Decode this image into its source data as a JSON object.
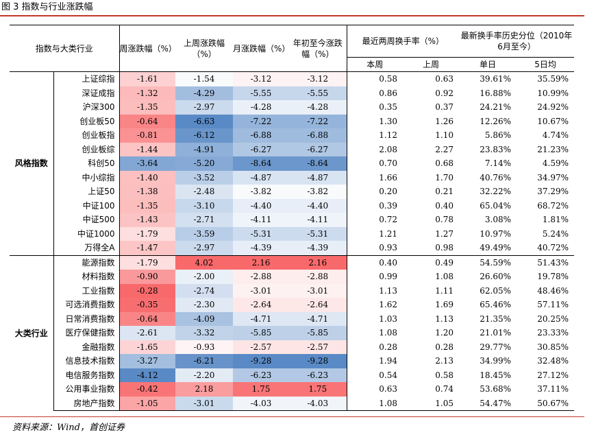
{
  "title": "图 3 指数与行业涨跌幅",
  "source": "资料来源：Wind，首创证券",
  "headers": {
    "category": "指数与大类行业",
    "week": "周涨跌幅（%）",
    "last_week": "上周涨跌幅（%）",
    "month": "月涨跌幅（%）",
    "ytd": "年初至今涨跌幅（%）",
    "turnover": "最近两周换手率（%）",
    "percentile": "最新换手率历史分位（2010年6月至今）",
    "this_week": "本周",
    "prev_week": "上周",
    "single_day": "单日",
    "five_day": "5日均"
  },
  "colors": {
    "rule": "#c0392b",
    "positive": "#f8696b",
    "negative": "#5a8ac6"
  },
  "groups": [
    {
      "label": "风格指数",
      "rows": [
        {
          "name": "上证综指",
          "week": "-1.61",
          "last_week": "-1.54",
          "month": "-3.12",
          "ytd": "-3.12",
          "tw": "0.58",
          "pw": "0.63",
          "single": "39.61%",
          "five": "35.59%"
        },
        {
          "name": "深证成指",
          "week": "-1.32",
          "last_week": "-4.29",
          "month": "-5.55",
          "ytd": "-5.55",
          "tw": "0.86",
          "pw": "0.92",
          "single": "16.88%",
          "five": "10.99%"
        },
        {
          "name": "沪深300",
          "week": "-1.35",
          "last_week": "-2.97",
          "month": "-4.28",
          "ytd": "-4.28",
          "tw": "0.35",
          "pw": "0.37",
          "single": "24.21%",
          "five": "24.92%"
        },
        {
          "name": "创业板50",
          "week": "-0.64",
          "last_week": "-6.63",
          "month": "-7.22",
          "ytd": "-7.22",
          "tw": "1.30",
          "pw": "1.26",
          "single": "12.26%",
          "five": "10.67%"
        },
        {
          "name": "创业板指",
          "week": "-0.81",
          "last_week": "-6.12",
          "month": "-6.88",
          "ytd": "-6.88",
          "tw": "1.12",
          "pw": "1.10",
          "single": "5.86%",
          "five": "4.74%"
        },
        {
          "name": "创业板综",
          "week": "-1.44",
          "last_week": "-4.91",
          "month": "-6.27",
          "ytd": "-6.27",
          "tw": "2.08",
          "pw": "2.27",
          "single": "23.83%",
          "five": "21.23%"
        },
        {
          "name": "科创50",
          "week": "-3.64",
          "last_week": "-5.20",
          "month": "-8.64",
          "ytd": "-8.64",
          "tw": "0.70",
          "pw": "0.68",
          "single": "7.14%",
          "five": "4.59%"
        },
        {
          "name": "中小综指",
          "week": "-1.40",
          "last_week": "-3.52",
          "month": "-4.87",
          "ytd": "-4.87",
          "tw": "1.66",
          "pw": "1.70",
          "single": "40.76%",
          "five": "34.97%"
        },
        {
          "name": "上证50",
          "week": "-1.38",
          "last_week": "-2.48",
          "month": "-3.82",
          "ytd": "-3.82",
          "tw": "0.20",
          "pw": "0.21",
          "single": "32.22%",
          "five": "37.29%"
        },
        {
          "name": "中证100",
          "week": "-1.35",
          "last_week": "-3.10",
          "month": "-4.40",
          "ytd": "-4.40",
          "tw": "0.39",
          "pw": "0.40",
          "single": "65.04%",
          "five": "68.72%"
        },
        {
          "name": "中证500",
          "week": "-1.43",
          "last_week": "-2.71",
          "month": "-4.11",
          "ytd": "-4.11",
          "tw": "0.72",
          "pw": "0.78",
          "single": "3.08%",
          "five": "1.81%"
        },
        {
          "name": "中证1000",
          "week": "-1.79",
          "last_week": "-3.59",
          "month": "-5.31",
          "ytd": "-5.31",
          "tw": "1.21",
          "pw": "1.27",
          "single": "10.97%",
          "five": "5.24%"
        },
        {
          "name": "万得全A",
          "week": "-1.47",
          "last_week": "-2.97",
          "month": "-4.39",
          "ytd": "-4.39",
          "tw": "0.93",
          "pw": "0.98",
          "single": "49.49%",
          "five": "40.72%"
        }
      ]
    },
    {
      "label": "大类行业",
      "rows": [
        {
          "name": "能源指数",
          "week": "-1.79",
          "last_week": "4.02",
          "month": "2.16",
          "ytd": "2.16",
          "tw": "0.40",
          "pw": "0.49",
          "single": "54.59%",
          "five": "51.43%"
        },
        {
          "name": "材料指数",
          "week": "-0.90",
          "last_week": "-2.00",
          "month": "-2.88",
          "ytd": "-2.88",
          "tw": "0.99",
          "pw": "1.08",
          "single": "26.60%",
          "five": "19.78%"
        },
        {
          "name": "工业指数",
          "week": "-0.28",
          "last_week": "-2.74",
          "month": "-3.01",
          "ytd": "-3.01",
          "tw": "1.13",
          "pw": "1.11",
          "single": "62.05%",
          "five": "48.46%"
        },
        {
          "name": "可选消费指数",
          "week": "-0.35",
          "last_week": "-2.30",
          "month": "-2.64",
          "ytd": "-2.64",
          "tw": "1.62",
          "pw": "1.69",
          "single": "65.46%",
          "five": "57.11%"
        },
        {
          "name": "日常消费指数",
          "week": "-0.64",
          "last_week": "-4.09",
          "month": "-4.71",
          "ytd": "-4.71",
          "tw": "1.03",
          "pw": "1.13",
          "single": "21.35%",
          "five": "20.25%"
        },
        {
          "name": "医疗保健指数",
          "week": "-2.61",
          "last_week": "-3.32",
          "month": "-5.85",
          "ytd": "-5.85",
          "tw": "1.08",
          "pw": "1.20",
          "single": "21.01%",
          "five": "23.33%"
        },
        {
          "name": "金融指数",
          "week": "-1.65",
          "last_week": "-0.93",
          "month": "-2.57",
          "ytd": "-2.57",
          "tw": "0.28",
          "pw": "0.28",
          "single": "29.77%",
          "five": "30.85%"
        },
        {
          "name": "信息技术指数",
          "week": "-3.27",
          "last_week": "-6.21",
          "month": "-9.28",
          "ytd": "-9.28",
          "tw": "1.94",
          "pw": "2.13",
          "single": "34.99%",
          "five": "32.48%"
        },
        {
          "name": "电信服务指数",
          "week": "-4.12",
          "last_week": "-2.20",
          "month": "-6.23",
          "ytd": "-6.23",
          "tw": "0.54",
          "pw": "0.58",
          "single": "18.45%",
          "five": "27.12%"
        },
        {
          "name": "公用事业指数",
          "week": "-0.42",
          "last_week": "2.18",
          "month": "1.75",
          "ytd": "1.75",
          "tw": "0.63",
          "pw": "0.74",
          "single": "53.68%",
          "five": "37.11%"
        },
        {
          "name": "房地产指数",
          "week": "-1.05",
          "last_week": "-3.01",
          "month": "-4.03",
          "ytd": "-4.03",
          "tw": "1.08",
          "pw": "1.05",
          "single": "54.47%",
          "five": "50.67%"
        }
      ]
    }
  ]
}
